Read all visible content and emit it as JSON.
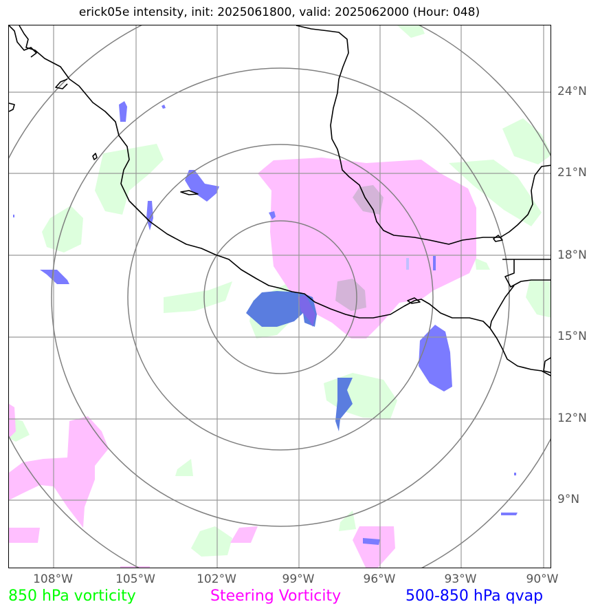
{
  "title": "erick05e intensity, init: 2025061800, valid: 2025062000 (Hour: 048)",
  "lat_labels": [
    "24°N",
    "21°N",
    "18°N",
    "15°N",
    "12°N",
    "9°N"
  ],
  "lon_labels": [
    "108°W",
    "105°W",
    "102°W",
    "99°W",
    "96°W",
    "93°W",
    "90°W"
  ],
  "legend": [
    {
      "label": "850 hPa vorticity",
      "color": "#00ff00"
    },
    {
      "label": "Steering Vorticity",
      "color": "#ff00ff"
    },
    {
      "label": "500-850 hPa qvap",
      "color": "#0000ff"
    }
  ],
  "colors": {
    "vorticity_850_fill": "#ddffdd",
    "steering_fill": "#ffbfff",
    "qvap_fill": "#7b7bff",
    "qvap_dark_fill": "#5a7ddf",
    "grid": "#999999",
    "range_rings": "#808080",
    "coastline": "#000000"
  }
}
